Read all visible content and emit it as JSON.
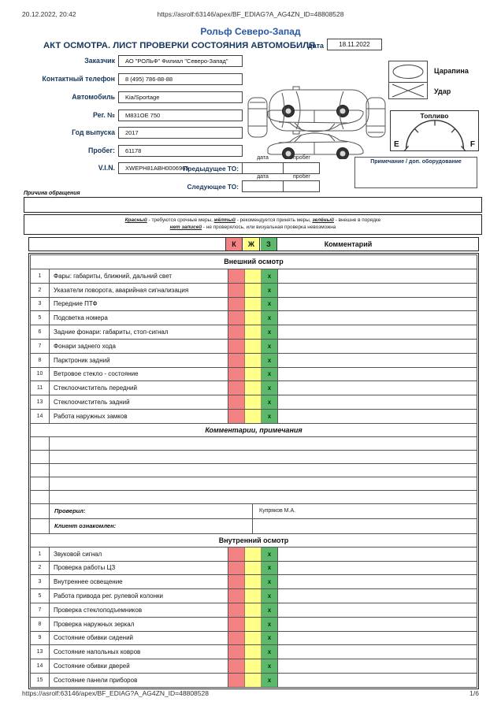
{
  "print_header": {
    "datetime": "20.12.2022, 20:42",
    "url": "https://asrolf:63146/apex/BF_EDIAG?A_AG4ZN_ID=48808528"
  },
  "brand": "Рольф Северо-Запад",
  "title": "АКТ ОСМОТРА. ЛИСТ ПРОВЕРКИ СОСТОЯНИЯ АВТОМОБИЛЯ",
  "date": {
    "label": "дата",
    "value": "18.11.2022"
  },
  "fields": [
    {
      "label": "Заказчик",
      "value": "АО \"РОЛЬФ\" Филиал \"Северо-Запад\""
    },
    {
      "label": "Контактный телефон",
      "value": "8 (495) 786-88-88"
    },
    {
      "label": "Автомобиль",
      "value": "Kia/Sportage"
    },
    {
      "label": "Рег. №",
      "value": "М831ОЕ 750"
    },
    {
      "label": "Год выпуска",
      "value": "2017"
    },
    {
      "label": "Пробег:",
      "value": "61178"
    },
    {
      "label": "V.I.N.",
      "value": "XWEPH81ABH0006965"
    }
  ],
  "to": {
    "col_date": "дата",
    "col_mileage": "пробег",
    "previous_label": "Предыдущее ТО:",
    "next_label": "Следующее ТО:",
    "previous": {
      "date": "",
      "mileage": ""
    },
    "next": {
      "date": "",
      "mileage": ""
    }
  },
  "damage_legend": {
    "scratch": "Царапина",
    "hit": "Удар"
  },
  "fuel": {
    "label": "Топливо",
    "empty": "E",
    "full": "F"
  },
  "note_title": "Примечание / доп. оборудование",
  "reason_label": "Причина обращения",
  "legend": {
    "items": [
      {
        "term": "Красный",
        "desc": " - требуются срочные меры,  "
      },
      {
        "term": "жёлтый",
        "desc": " - рекомендуется принять меры,  "
      },
      {
        "term": "зелёный",
        "desc": " - внешне в порядке"
      }
    ],
    "line2": {
      "term": "нет записей",
      "desc": " - не проверялось, или визуальная проверка невозможна"
    }
  },
  "table": {
    "header": {
      "k": "К",
      "zh": "Ж",
      "z": "З",
      "comment": "Комментарий"
    },
    "external": {
      "title": "Внешний осмотр",
      "rows": [
        {
          "num": "1",
          "name": "Фары: габариты, ближний, дальний свет",
          "k": "",
          "zh": "",
          "z": "x"
        },
        {
          "num": "2",
          "name": "Указатели поворота, аварийная сигнализация",
          "k": "",
          "zh": "",
          "z": "x"
        },
        {
          "num": "3",
          "name": "Передние ПТФ",
          "k": "",
          "zh": "",
          "z": "x"
        },
        {
          "num": "5",
          "name": "Подсветка номера",
          "k": "",
          "zh": "",
          "z": "x"
        },
        {
          "num": "6",
          "name": "Задние фонари: габариты, стоп-сигнал",
          "k": "",
          "zh": "",
          "z": "x"
        },
        {
          "num": "7",
          "name": "Фонари заднего хода",
          "k": "",
          "zh": "",
          "z": "x"
        },
        {
          "num": "8",
          "name": "Парктроник задний",
          "k": "",
          "zh": "",
          "z": "x"
        },
        {
          "num": "10",
          "name": "Ветровое стекло - состояние",
          "k": "",
          "zh": "",
          "z": "x"
        },
        {
          "num": "11",
          "name": "Стеклоочиститель передний",
          "k": "",
          "zh": "",
          "z": "x"
        },
        {
          "num": "13",
          "name": "Стеклоочиститель задний",
          "k": "",
          "zh": "",
          "z": "x"
        },
        {
          "num": "14",
          "name": "Работа наружных замков",
          "k": "",
          "zh": "",
          "z": "x"
        }
      ]
    },
    "comments": {
      "title": "Комментарии, примечания",
      "empty_rows": 5
    },
    "signoff": [
      {
        "label": "Проверил:",
        "value": "Купряков М.А."
      },
      {
        "label": "Клиент ознакомлен:",
        "value": ""
      }
    ],
    "internal": {
      "title": "Внутренний осмотр",
      "rows": [
        {
          "num": "1",
          "name": "Звуковой сигнал",
          "k": "",
          "zh": "",
          "z": "x"
        },
        {
          "num": "2",
          "name": "Проверка работы ЦЗ",
          "k": "",
          "zh": "",
          "z": "x"
        },
        {
          "num": "3",
          "name": "Внутреннее освещение",
          "k": "",
          "zh": "",
          "z": "x"
        },
        {
          "num": "5",
          "name": "Работа привода рег. рулевой колонки",
          "k": "",
          "zh": "",
          "z": "x"
        },
        {
          "num": "7",
          "name": "Проверка стеклоподъемников",
          "k": "",
          "zh": "",
          "z": "x"
        },
        {
          "num": "8",
          "name": "Проверка наружных зеркал",
          "k": "",
          "zh": "",
          "z": "x"
        },
        {
          "num": "9",
          "name": "Состояние обивки сидений",
          "k": "",
          "zh": "",
          "z": "x"
        },
        {
          "num": "13",
          "name": "Состояние напольных ковров",
          "k": "",
          "zh": "",
          "z": "x"
        },
        {
          "num": "14",
          "name": "Состояние обивки дверей",
          "k": "",
          "zh": "",
          "z": "x"
        },
        {
          "num": "15",
          "name": "Состояние панели приборов",
          "k": "",
          "zh": "",
          "z": "x"
        }
      ]
    }
  },
  "footer": {
    "url": "https://asrolf:63146/apex/BF_EDIAG?A_AG4ZN_ID=48808528",
    "page": "1/6"
  },
  "colors": {
    "brand_blue": "#2857a4",
    "accent_navy": "#16365c",
    "cell_red": "#f48282",
    "cell_yellow": "#ffff8a",
    "cell_green": "#5cb86a"
  }
}
